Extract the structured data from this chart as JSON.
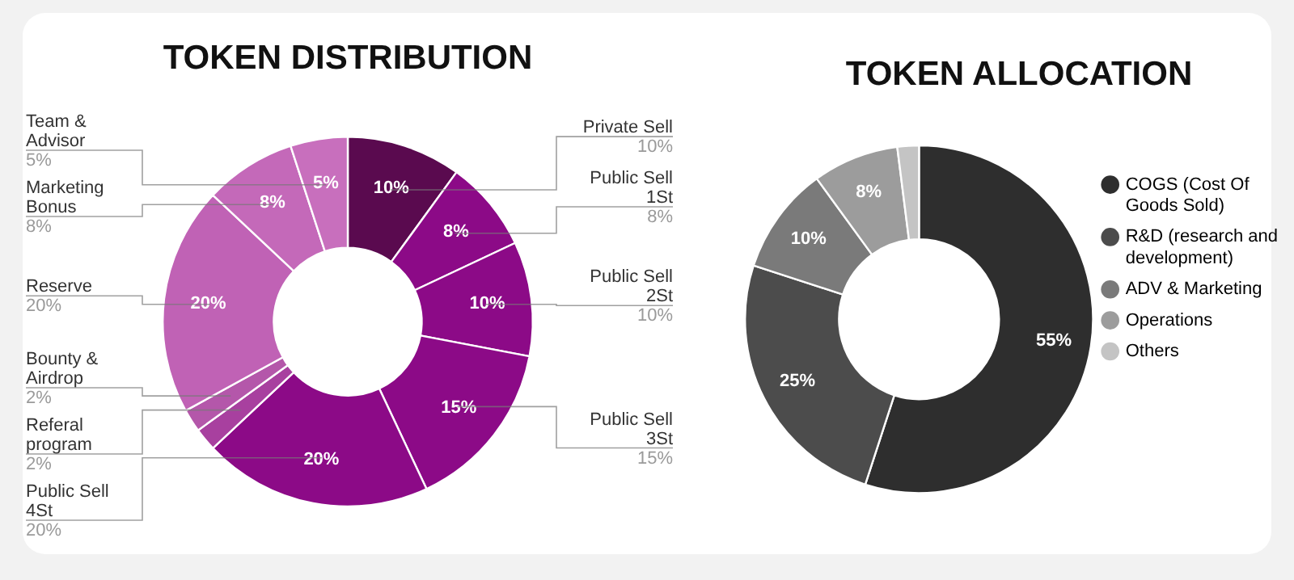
{
  "chart_data": [
    {
      "type": "donut",
      "title": "TOKEN DISTRIBUTION",
      "categories": [
        "Private Sell",
        "Public Sell 1St",
        "Public Sell 2St",
        "Public Sell 3St",
        "Public Sell 4St",
        "Referal program",
        "Bounty & Airdrop",
        "Reserve",
        "Marketing Bonus",
        "Team & Advisor"
      ],
      "values": [
        10,
        8,
        10,
        15,
        20,
        2,
        2,
        20,
        8,
        5
      ],
      "colors": [
        "#5a0a4f",
        "#8c0a87",
        "#8c0a87",
        "#8c0a87",
        "#8c0a87",
        "#a8409f",
        "#b457aa",
        "#c062b5",
        "#c469b9",
        "#c86fbd"
      ],
      "value_labels": [
        "10%",
        "8%",
        "10%",
        "15%",
        "20%",
        "2%",
        "2%",
        "20%",
        "8%",
        "5%"
      ]
    },
    {
      "type": "donut",
      "title": "TOKEN ALLOCATION",
      "categories": [
        "COGS (Cost Of Goods Sold)",
        "R&D (research and development)",
        "ADV & Marketing",
        "Operations",
        "Others"
      ],
      "values": [
        55,
        25,
        10,
        8,
        2
      ],
      "colors": [
        "#2e2e2e",
        "#4c4c4c",
        "#7a7a7a",
        "#9c9c9c",
        "#c4c4c4"
      ],
      "value_labels": [
        "55%",
        "25%",
        "10%",
        "8%",
        null
      ],
      "legend": "right"
    }
  ]
}
